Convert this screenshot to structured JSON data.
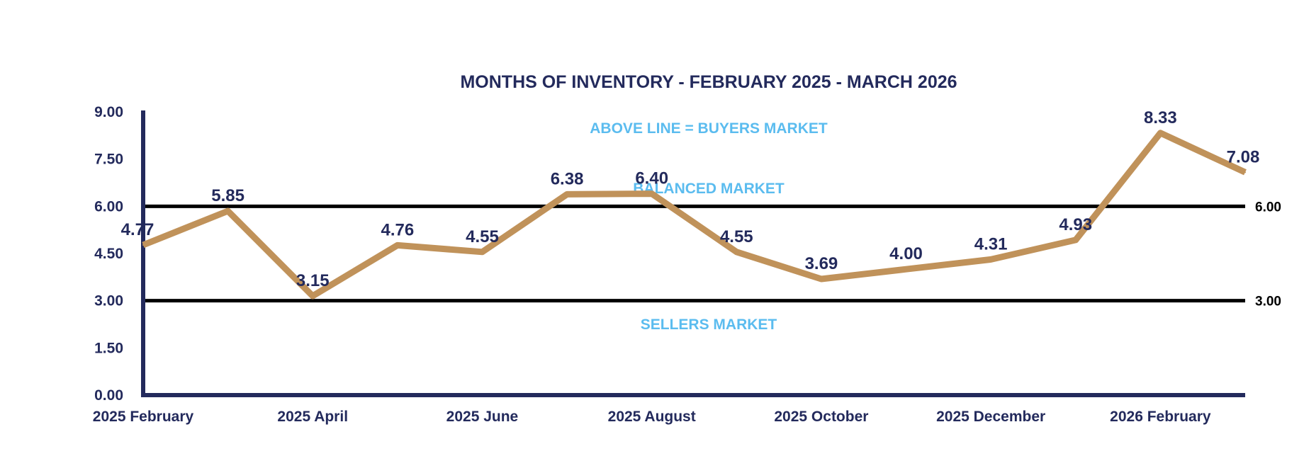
{
  "chart_data": {
    "type": "line",
    "title": "MONTHS OF INVENTORY - FEBRUARY 2025 - MARCH 2026",
    "xlabel": "",
    "ylabel": "",
    "ylim": [
      0,
      9
    ],
    "yticks": [
      "0.00",
      "1.50",
      "3.00",
      "4.50",
      "6.00",
      "7.50",
      "9.00"
    ],
    "ytick_values": [
      0,
      1.5,
      3,
      4.5,
      6,
      7.5,
      9
    ],
    "x_tick_labels": [
      {
        "index": 0,
        "label": "2025 February"
      },
      {
        "index": 2,
        "label": "2025 April"
      },
      {
        "index": 4,
        "label": "2025 June"
      },
      {
        "index": 6,
        "label": "2025 August"
      },
      {
        "index": 8,
        "label": "2025 October"
      },
      {
        "index": 10,
        "label": "2025 December"
      },
      {
        "index": 12,
        "label": "2026 February"
      }
    ],
    "series": [
      {
        "name": "Months of Inventory",
        "values": [
          4.77,
          5.85,
          3.15,
          4.76,
          4.55,
          6.38,
          6.4,
          4.55,
          3.69,
          4.0,
          4.31,
          4.93,
          8.33,
          7.08
        ],
        "labels": [
          "4.77",
          "5.85",
          "3.15",
          "4.76",
          "4.55",
          "6.38",
          "6.40",
          "4.55",
          "3.69",
          "4.00",
          "4.31",
          "4.93",
          "8.33",
          "7.08"
        ]
      }
    ],
    "reference_lines": [
      {
        "value": 6,
        "label": "6.00"
      },
      {
        "value": 3,
        "label": "3.00"
      }
    ],
    "zone_labels": {
      "buyers": "ABOVE LINE = BUYERS MARKET",
      "balanced": "BALANCED MARKET",
      "sellers": "SELLERS MARKET"
    },
    "grid": false,
    "legend": "none"
  },
  "colors": {
    "navy": "#232a5c",
    "line": "#c0925a",
    "zone_text": "#5bbcef",
    "ref_line": "#000000",
    "background": "#ffffff"
  }
}
